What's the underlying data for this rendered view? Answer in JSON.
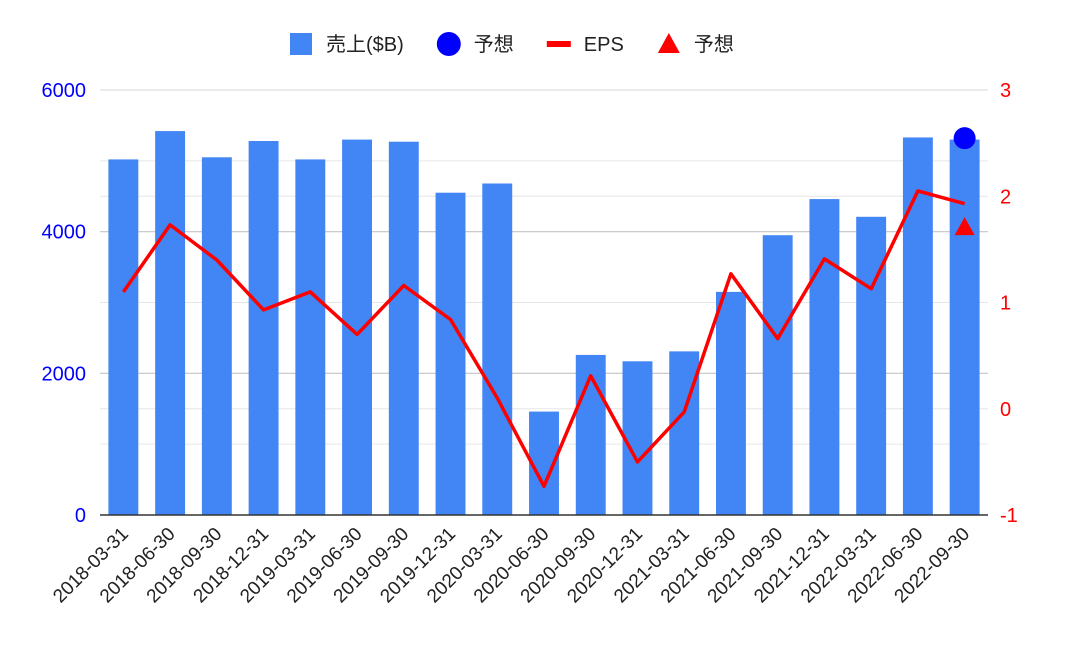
{
  "chart_data": {
    "type": "bar",
    "categories": [
      "2018-03-31",
      "2018-06-30",
      "2018-09-30",
      "2018-12-31",
      "2019-03-31",
      "2019-06-30",
      "2019-09-30",
      "2019-12-31",
      "2020-03-31",
      "2020-06-30",
      "2020-09-30",
      "2020-12-31",
      "2021-03-31",
      "2021-06-30",
      "2021-09-30",
      "2021-12-31",
      "2022-03-31",
      "2022-06-30",
      "2022-09-30"
    ],
    "series": [
      {
        "name": "売上($B)",
        "kind": "bar",
        "axis": "left",
        "color": "#4285f4",
        "values": [
          5020,
          5420,
          5050,
          5280,
          5020,
          5300,
          5270,
          4550,
          4680,
          1460,
          2260,
          2170,
          2310,
          3150,
          3950,
          4460,
          4210,
          5330,
          5300
        ]
      },
      {
        "name": "予想",
        "kind": "point",
        "axis": "left",
        "color": "#0000ff",
        "marker": "circle",
        "values": [
          null,
          null,
          null,
          null,
          null,
          null,
          null,
          null,
          null,
          null,
          null,
          null,
          null,
          null,
          null,
          null,
          null,
          null,
          5320
        ]
      },
      {
        "name": "EPS",
        "kind": "line",
        "axis": "right",
        "color": "#ff0000",
        "values": [
          1.1,
          1.73,
          1.4,
          0.93,
          1.1,
          0.7,
          1.16,
          0.84,
          0.1,
          -0.73,
          0.31,
          -0.5,
          -0.03,
          1.27,
          0.66,
          1.41,
          1.13,
          2.05,
          1.93
        ]
      },
      {
        "name": "予想",
        "kind": "point",
        "axis": "right",
        "color": "#ff0000",
        "marker": "triangle",
        "values": [
          null,
          null,
          null,
          null,
          null,
          null,
          null,
          null,
          null,
          null,
          null,
          null,
          null,
          null,
          null,
          null,
          null,
          null,
          1.71
        ]
      }
    ],
    "y_left": {
      "ticks": [
        "0",
        "2000",
        "4000",
        "6000"
      ],
      "lim": [
        0,
        6000
      ],
      "color": "#0000ff"
    },
    "y_right": {
      "ticks": [
        "-1",
        "0",
        "1",
        "2",
        "3"
      ],
      "lim": [
        -1,
        3
      ],
      "color": "#ff0000"
    },
    "grid": true,
    "legend_position": "top"
  }
}
